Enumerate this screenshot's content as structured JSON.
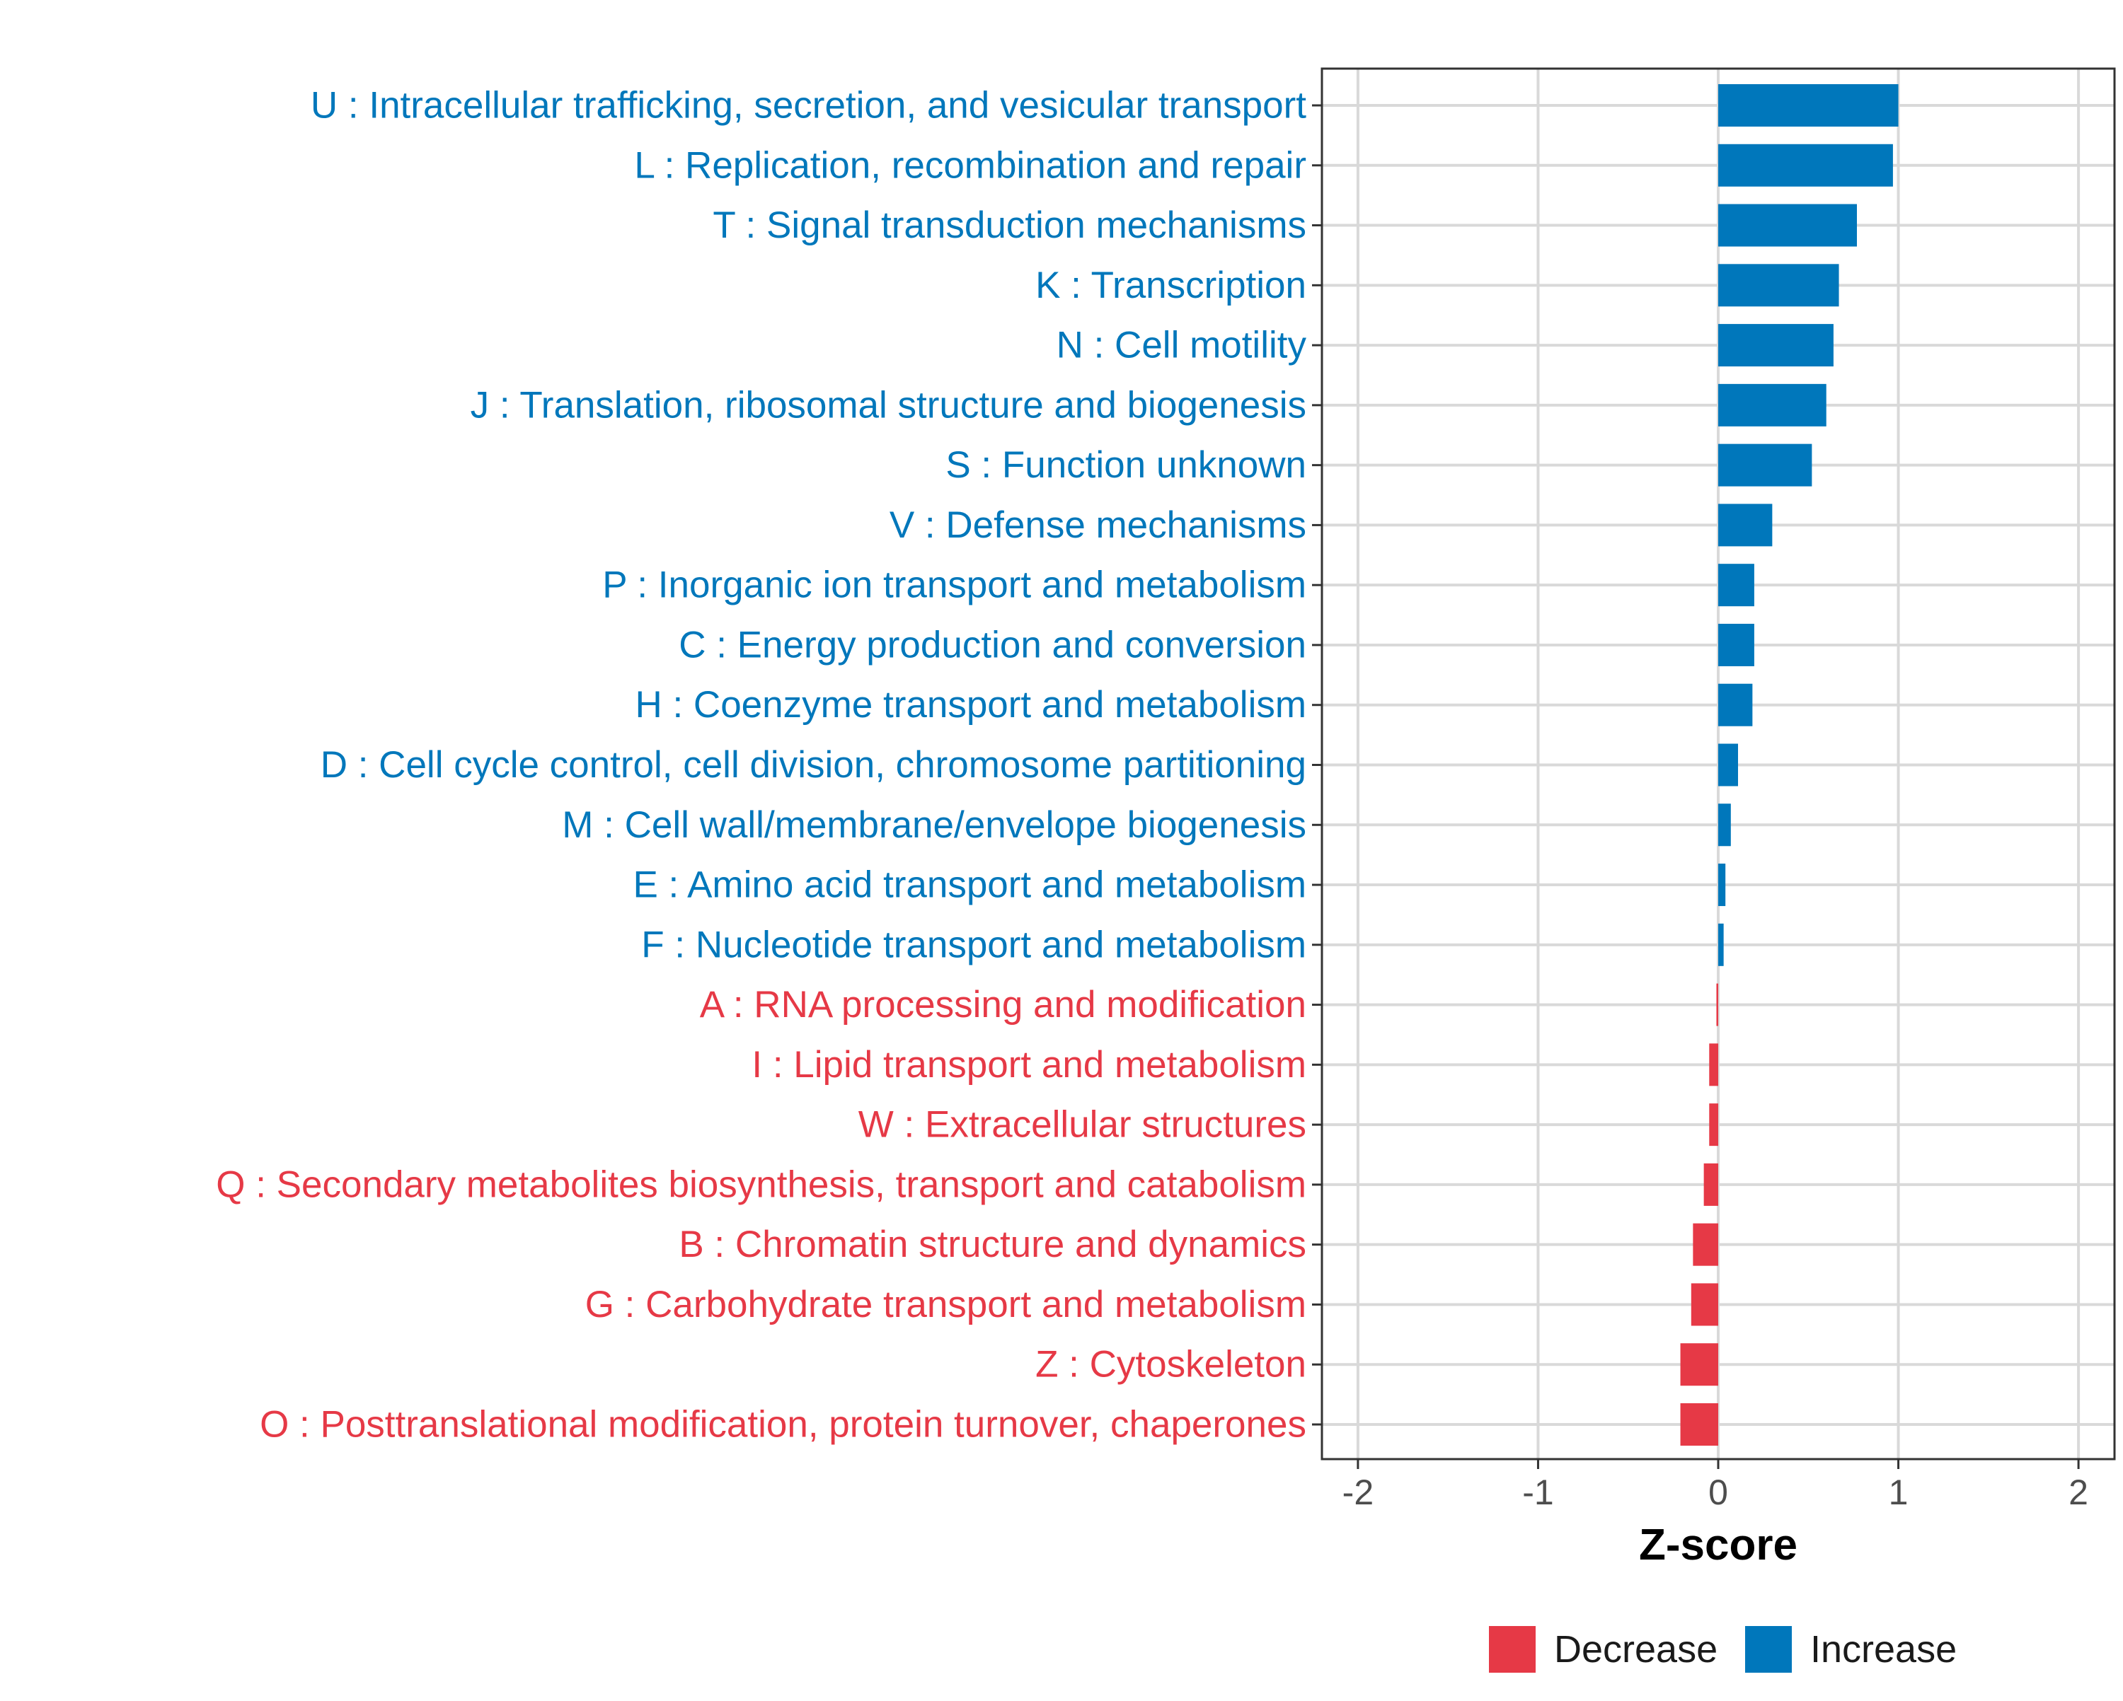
{
  "chart_data": {
    "type": "bar",
    "orientation": "horizontal",
    "xlabel": "Z-score",
    "xlim": [
      -2.2,
      2.2
    ],
    "xticks": [
      -2,
      -1,
      0,
      1,
      2
    ],
    "xtick_labels": [
      "-2",
      "-1",
      "0",
      "1",
      "2"
    ],
    "grid": true,
    "legend_position": "bottom",
    "colors": {
      "Increase": "#0077bb",
      "Decrease": "#e63946"
    },
    "legend": [
      {
        "label": "Decrease",
        "color": "#e63946"
      },
      {
        "label": "Increase",
        "color": "#0077bb"
      }
    ],
    "categories": [
      {
        "label": "U : Intracellular trafficking, secretion, and vesicular transport",
        "value": 1.0,
        "group": "Increase"
      },
      {
        "label": "L : Replication, recombination and repair",
        "value": 0.97,
        "group": "Increase"
      },
      {
        "label": "T : Signal transduction mechanisms",
        "value": 0.77,
        "group": "Increase"
      },
      {
        "label": "K : Transcription",
        "value": 0.67,
        "group": "Increase"
      },
      {
        "label": "N : Cell motility",
        "value": 0.64,
        "group": "Increase"
      },
      {
        "label": "J : Translation, ribosomal structure and biogenesis",
        "value": 0.6,
        "group": "Increase"
      },
      {
        "label": "S : Function unknown",
        "value": 0.52,
        "group": "Increase"
      },
      {
        "label": "V : Defense mechanisms",
        "value": 0.3,
        "group": "Increase"
      },
      {
        "label": "P : Inorganic ion transport and metabolism",
        "value": 0.2,
        "group": "Increase"
      },
      {
        "label": "C : Energy production and conversion",
        "value": 0.2,
        "group": "Increase"
      },
      {
        "label": "H : Coenzyme transport and metabolism",
        "value": 0.19,
        "group": "Increase"
      },
      {
        "label": "D : Cell cycle control, cell division, chromosome partitioning",
        "value": 0.11,
        "group": "Increase"
      },
      {
        "label": "M : Cell wall/membrane/envelope biogenesis",
        "value": 0.07,
        "group": "Increase"
      },
      {
        "label": "E : Amino acid transport and metabolism",
        "value": 0.04,
        "group": "Increase"
      },
      {
        "label": "F : Nucleotide transport and metabolism",
        "value": 0.03,
        "group": "Increase"
      },
      {
        "label": "A : RNA processing and modification",
        "value": -0.01,
        "group": "Decrease"
      },
      {
        "label": "I : Lipid transport and metabolism",
        "value": -0.05,
        "group": "Decrease"
      },
      {
        "label": "W : Extracellular structures",
        "value": -0.05,
        "group": "Decrease"
      },
      {
        "label": "Q : Secondary metabolites biosynthesis, transport and catabolism",
        "value": -0.08,
        "group": "Decrease"
      },
      {
        "label": "B : Chromatin structure and dynamics",
        "value": -0.14,
        "group": "Decrease"
      },
      {
        "label": "G : Carbohydrate transport and metabolism",
        "value": -0.15,
        "group": "Decrease"
      },
      {
        "label": "Z : Cytoskeleton",
        "value": -0.21,
        "group": "Decrease"
      },
      {
        "label": "O : Posttranslational modification, protein turnover, chaperones",
        "value": -0.21,
        "group": "Decrease"
      }
    ]
  }
}
